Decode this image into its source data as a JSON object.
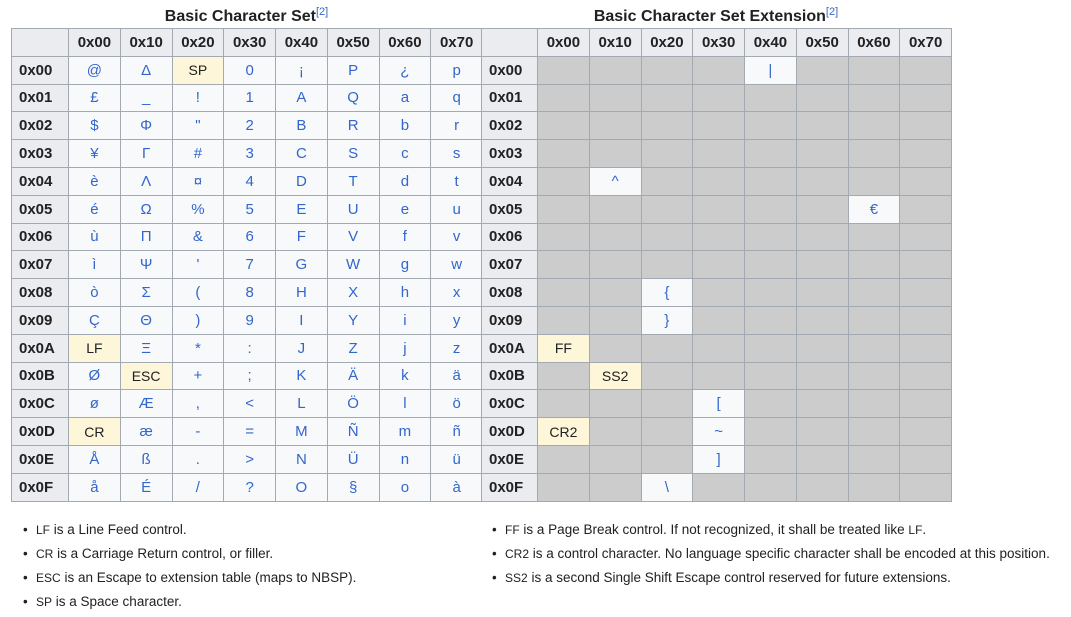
{
  "basic": {
    "title": "Basic Character Set",
    "ref": "[2]",
    "columns": [
      "0x00",
      "0x10",
      "0x20",
      "0x30",
      "0x40",
      "0x50",
      "0x60",
      "0x70"
    ],
    "rows": [
      {
        "label": "0x00",
        "cells": [
          {
            "t": "@"
          },
          {
            "t": "Δ"
          },
          {
            "t": "SP",
            "c": 1
          },
          {
            "t": "0"
          },
          {
            "t": "¡"
          },
          {
            "t": "P"
          },
          {
            "t": "¿"
          },
          {
            "t": "p"
          }
        ]
      },
      {
        "label": "0x01",
        "cells": [
          {
            "t": "£"
          },
          {
            "t": "_"
          },
          {
            "t": "!"
          },
          {
            "t": "1"
          },
          {
            "t": "A"
          },
          {
            "t": "Q"
          },
          {
            "t": "a"
          },
          {
            "t": "q"
          }
        ]
      },
      {
        "label": "0x02",
        "cells": [
          {
            "t": "$"
          },
          {
            "t": "Φ"
          },
          {
            "t": "\""
          },
          {
            "t": "2"
          },
          {
            "t": "B"
          },
          {
            "t": "R"
          },
          {
            "t": "b"
          },
          {
            "t": "r"
          }
        ]
      },
      {
        "label": "0x03",
        "cells": [
          {
            "t": "¥"
          },
          {
            "t": "Γ"
          },
          {
            "t": "#"
          },
          {
            "t": "3"
          },
          {
            "t": "C"
          },
          {
            "t": "S"
          },
          {
            "t": "c"
          },
          {
            "t": "s"
          }
        ]
      },
      {
        "label": "0x04",
        "cells": [
          {
            "t": "è"
          },
          {
            "t": "Λ"
          },
          {
            "t": "¤"
          },
          {
            "t": "4"
          },
          {
            "t": "D"
          },
          {
            "t": "T"
          },
          {
            "t": "d"
          },
          {
            "t": "t"
          }
        ]
      },
      {
        "label": "0x05",
        "cells": [
          {
            "t": "é"
          },
          {
            "t": "Ω"
          },
          {
            "t": "%"
          },
          {
            "t": "5"
          },
          {
            "t": "E"
          },
          {
            "t": "U"
          },
          {
            "t": "e"
          },
          {
            "t": "u"
          }
        ]
      },
      {
        "label": "0x06",
        "cells": [
          {
            "t": "ù"
          },
          {
            "t": "Π"
          },
          {
            "t": "&"
          },
          {
            "t": "6"
          },
          {
            "t": "F"
          },
          {
            "t": "V"
          },
          {
            "t": "f"
          },
          {
            "t": "v"
          }
        ]
      },
      {
        "label": "0x07",
        "cells": [
          {
            "t": "ì"
          },
          {
            "t": "Ψ"
          },
          {
            "t": "'"
          },
          {
            "t": "7"
          },
          {
            "t": "G"
          },
          {
            "t": "W"
          },
          {
            "t": "g"
          },
          {
            "t": "w"
          }
        ]
      },
      {
        "label": "0x08",
        "cells": [
          {
            "t": "ò"
          },
          {
            "t": "Σ"
          },
          {
            "t": "("
          },
          {
            "t": "8"
          },
          {
            "t": "H"
          },
          {
            "t": "X"
          },
          {
            "t": "h"
          },
          {
            "t": "x"
          }
        ]
      },
      {
        "label": "0x09",
        "cells": [
          {
            "t": "Ç"
          },
          {
            "t": "Θ"
          },
          {
            "t": ")"
          },
          {
            "t": "9"
          },
          {
            "t": "I"
          },
          {
            "t": "Y"
          },
          {
            "t": "i"
          },
          {
            "t": "y"
          }
        ]
      },
      {
        "label": "0x0A",
        "cells": [
          {
            "t": "LF",
            "c": 1
          },
          {
            "t": "Ξ"
          },
          {
            "t": "*"
          },
          {
            "t": ":"
          },
          {
            "t": "J"
          },
          {
            "t": "Z"
          },
          {
            "t": "j"
          },
          {
            "t": "z"
          }
        ]
      },
      {
        "label": "0x0B",
        "cells": [
          {
            "t": "Ø"
          },
          {
            "t": "ESC",
            "c": 1
          },
          {
            "t": "+"
          },
          {
            "t": ";"
          },
          {
            "t": "K"
          },
          {
            "t": "Ä"
          },
          {
            "t": "k"
          },
          {
            "t": "ä"
          }
        ]
      },
      {
        "label": "0x0C",
        "cells": [
          {
            "t": "ø"
          },
          {
            "t": "Æ"
          },
          {
            "t": ","
          },
          {
            "t": "<"
          },
          {
            "t": "L"
          },
          {
            "t": "Ö"
          },
          {
            "t": "l"
          },
          {
            "t": "ö"
          }
        ]
      },
      {
        "label": "0x0D",
        "cells": [
          {
            "t": "CR",
            "c": 1
          },
          {
            "t": "æ"
          },
          {
            "t": "-"
          },
          {
            "t": "="
          },
          {
            "t": "M"
          },
          {
            "t": "Ñ"
          },
          {
            "t": "m"
          },
          {
            "t": "ñ"
          }
        ]
      },
      {
        "label": "0x0E",
        "cells": [
          {
            "t": "Å"
          },
          {
            "t": "ß"
          },
          {
            "t": "."
          },
          {
            "t": ">"
          },
          {
            "t": "N"
          },
          {
            "t": "Ü"
          },
          {
            "t": "n"
          },
          {
            "t": "ü"
          }
        ]
      },
      {
        "label": "0x0F",
        "cells": [
          {
            "t": "å"
          },
          {
            "t": "É"
          },
          {
            "t": "/"
          },
          {
            "t": "?"
          },
          {
            "t": "O"
          },
          {
            "t": "§"
          },
          {
            "t": "o"
          },
          {
            "t": "à"
          }
        ]
      }
    ]
  },
  "extension": {
    "title": "Basic Character Set Extension",
    "ref": "[2]",
    "columns": [
      "0x00",
      "0x10",
      "0x20",
      "0x30",
      "0x40",
      "0x50",
      "0x60",
      "0x70"
    ],
    "rows": [
      {
        "label": "0x00",
        "cells": [
          {},
          {},
          {},
          {},
          {
            "t": "|"
          },
          {},
          {},
          {}
        ]
      },
      {
        "label": "0x01",
        "cells": [
          {},
          {},
          {},
          {},
          {},
          {},
          {},
          {}
        ]
      },
      {
        "label": "0x02",
        "cells": [
          {},
          {},
          {},
          {},
          {},
          {},
          {},
          {}
        ]
      },
      {
        "label": "0x03",
        "cells": [
          {},
          {},
          {},
          {},
          {},
          {},
          {},
          {}
        ]
      },
      {
        "label": "0x04",
        "cells": [
          {},
          {
            "t": "^"
          },
          {},
          {},
          {},
          {},
          {},
          {}
        ]
      },
      {
        "label": "0x05",
        "cells": [
          {},
          {},
          {},
          {},
          {},
          {},
          {
            "t": "€"
          },
          {}
        ]
      },
      {
        "label": "0x06",
        "cells": [
          {},
          {},
          {},
          {},
          {},
          {},
          {},
          {}
        ]
      },
      {
        "label": "0x07",
        "cells": [
          {},
          {},
          {},
          {},
          {},
          {},
          {},
          {}
        ]
      },
      {
        "label": "0x08",
        "cells": [
          {},
          {},
          {
            "t": "{"
          },
          {},
          {},
          {},
          {},
          {}
        ]
      },
      {
        "label": "0x09",
        "cells": [
          {},
          {},
          {
            "t": "}"
          },
          {},
          {},
          {},
          {},
          {}
        ]
      },
      {
        "label": "0x0A",
        "cells": [
          {
            "t": "FF",
            "c": 1
          },
          {},
          {},
          {},
          {},
          {},
          {},
          {}
        ]
      },
      {
        "label": "0x0B",
        "cells": [
          {},
          {
            "t": "SS2",
            "c": 1
          },
          {},
          {},
          {},
          {},
          {},
          {}
        ]
      },
      {
        "label": "0x0C",
        "cells": [
          {},
          {},
          {},
          {
            "t": "["
          },
          {},
          {},
          {},
          {}
        ]
      },
      {
        "label": "0x0D",
        "cells": [
          {
            "t": "CR2",
            "c": 1
          },
          {},
          {},
          {
            "t": "~"
          },
          {},
          {},
          {},
          {}
        ]
      },
      {
        "label": "0x0E",
        "cells": [
          {},
          {},
          {},
          {
            "t": "]"
          },
          {},
          {},
          {},
          {}
        ]
      },
      {
        "label": "0x0F",
        "cells": [
          {},
          {},
          {
            "t": "\\"
          },
          {},
          {},
          {},
          {},
          {}
        ]
      }
    ]
  },
  "notes_left": [
    {
      "code": "LF",
      "text": " is a Line Feed control."
    },
    {
      "code": "CR",
      "text": " is a Carriage Return control, or filler."
    },
    {
      "code": "ESC",
      "text": " is an Escape to extension table (maps to NBSP)."
    },
    {
      "code": "SP",
      "text": " is a Space character."
    }
  ],
  "notes_right": [
    {
      "code": "FF",
      "text": " is a Page Break control. If not recognized, it shall be treated like ",
      "code2": "LF",
      "text2": "."
    },
    {
      "code": "CR2",
      "text": " is a control character. No language specific character shall be encoded at this position."
    },
    {
      "code": "SS2",
      "text": " is a second Single Shift Escape control reserved for future extensions."
    }
  ],
  "colors": {
    "link": "#3366cc",
    "control_bg": "#fef6d8",
    "empty_bg": "#cccccc",
    "header_bg": "#eaecf0",
    "cell_bg": "#f8f9fa",
    "border": "#a2a9b1"
  }
}
